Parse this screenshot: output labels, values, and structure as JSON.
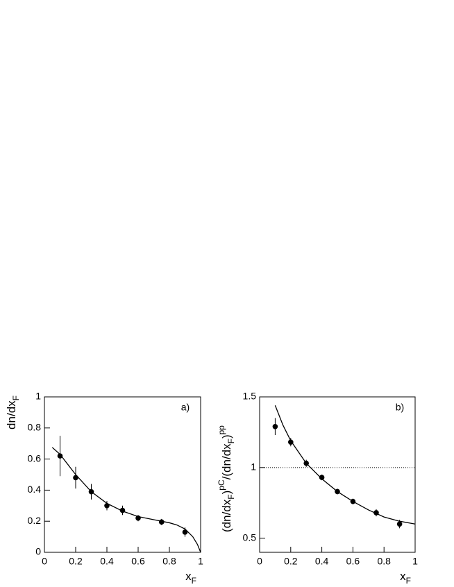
{
  "chart_data": [
    {
      "type": "scatter",
      "panel_label": "a)",
      "xlabel": [
        {
          "text": "x",
          "pos": "base"
        },
        {
          "text": "F",
          "pos": "sub"
        }
      ],
      "ylabel": [
        {
          "text": "dn/dx",
          "pos": "base"
        },
        {
          "text": "F",
          "pos": "sub"
        }
      ],
      "xlim": [
        0,
        1
      ],
      "xticks": [
        0,
        0.2,
        0.4,
        0.6,
        0.8,
        1
      ],
      "ylim": [
        0,
        1
      ],
      "yticks": [
        0,
        0.2,
        0.4,
        0.6,
        0.8,
        1
      ],
      "color": "#000000",
      "points": {
        "x": [
          0.1,
          0.2,
          0.3,
          0.4,
          0.5,
          0.6,
          0.75,
          0.9
        ],
        "values": [
          0.62,
          0.48,
          0.39,
          0.3,
          0.27,
          0.22,
          0.195,
          0.13
        ],
        "errors": [
          0.13,
          0.07,
          0.05,
          0.03,
          0.03,
          0.02,
          0.02,
          0.03
        ]
      },
      "curve": {
        "x": [
          0.05,
          0.1,
          0.2,
          0.3,
          0.4,
          0.5,
          0.6,
          0.7,
          0.8,
          0.85,
          0.9,
          0.95,
          0.98,
          1.0
        ],
        "values": [
          0.675,
          0.63,
          0.5,
          0.39,
          0.315,
          0.265,
          0.23,
          0.21,
          0.19,
          0.175,
          0.15,
          0.1,
          0.05,
          0.0
        ]
      }
    },
    {
      "type": "scatter",
      "panel_label": "b)",
      "xlabel": [
        {
          "text": "x",
          "pos": "base"
        },
        {
          "text": "F",
          "pos": "sub"
        }
      ],
      "ylabel": [
        {
          "text": "(dn/dx",
          "pos": "base"
        },
        {
          "text": "F",
          "pos": "sub"
        },
        {
          "text": ")",
          "pos": "base"
        },
        {
          "text": "pC",
          "pos": "sup"
        },
        {
          "text": "/(dn/dx",
          "pos": "base"
        },
        {
          "text": "F",
          "pos": "sub"
        },
        {
          "text": ")",
          "pos": "base"
        },
        {
          "text": "pp",
          "pos": "sup"
        }
      ],
      "xlim": [
        0,
        1
      ],
      "xticks": [
        0,
        0.2,
        0.4,
        0.6,
        0.8,
        1
      ],
      "ylim": [
        0.4,
        1.5
      ],
      "yticks": [
        0.5,
        1,
        1.5
      ],
      "hline": 1,
      "color": "#000000",
      "points": {
        "x": [
          0.1,
          0.2,
          0.3,
          0.4,
          0.5,
          0.6,
          0.75,
          0.9
        ],
        "values": [
          1.29,
          1.18,
          1.03,
          0.93,
          0.83,
          0.76,
          0.68,
          0.6
        ],
        "errors": [
          0.06,
          0.03,
          0.025,
          0.02,
          0.02,
          0.02,
          0.025,
          0.03
        ]
      },
      "curve": {
        "x": [
          0.1,
          0.15,
          0.2,
          0.3,
          0.4,
          0.5,
          0.6,
          0.7,
          0.8,
          0.9,
          1.0
        ],
        "values": [
          1.44,
          1.3,
          1.19,
          1.03,
          0.92,
          0.83,
          0.76,
          0.7,
          0.65,
          0.62,
          0.6
        ]
      }
    }
  ]
}
